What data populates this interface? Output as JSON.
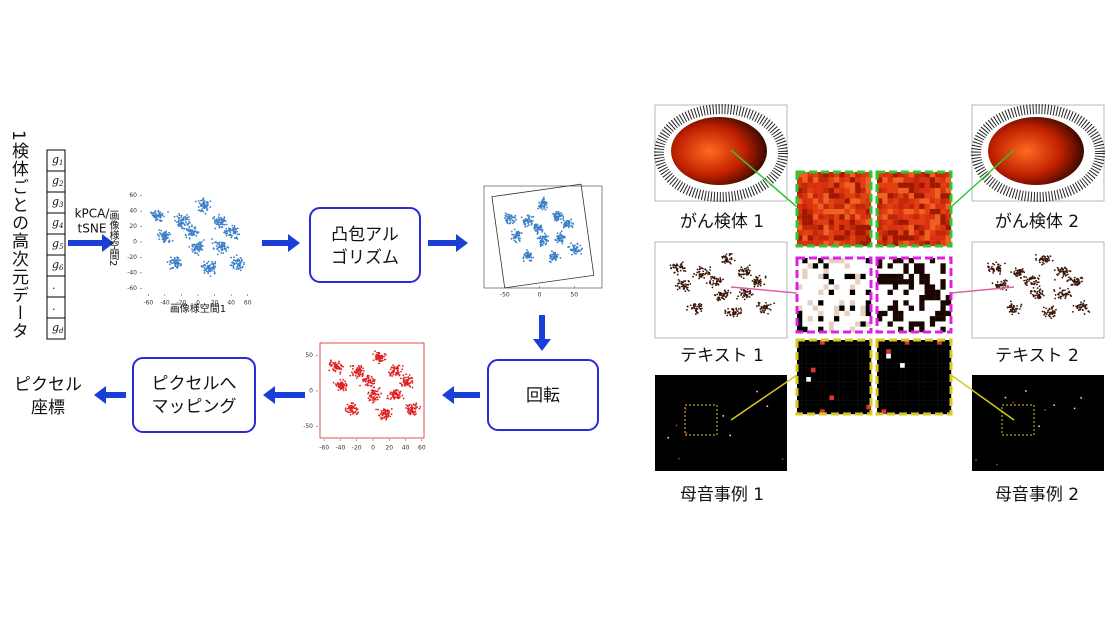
{
  "vertical_label": "1検体ごとの高次元データ",
  "vector": [
    {
      "var": "g",
      "sub": "1"
    },
    {
      "var": "g",
      "sub": "2"
    },
    {
      "var": "g",
      "sub": "3"
    },
    {
      "var": "g",
      "sub": "4"
    },
    {
      "var": "g",
      "sub": "5"
    },
    {
      "var": "g",
      "sub": "6"
    },
    {
      "var": "."
    },
    {
      "var": "."
    },
    {
      "var": "g",
      "sub": "d"
    }
  ],
  "method": [
    "kPCA/",
    "tSNE"
  ],
  "plot1": {
    "xlabel": "画像様空間1",
    "ylabel": "画像様空間2",
    "xlim": [
      -70,
      70
    ],
    "ylim": [
      -70,
      70
    ],
    "xticks": [
      -60,
      -40,
      -20,
      0,
      20,
      40,
      60
    ],
    "yticks": [
      -60,
      -40,
      -20,
      0,
      20,
      40,
      60
    ]
  },
  "plot2": {
    "xlim": [
      -80,
      90
    ],
    "xticks": [
      -50,
      0,
      50
    ]
  },
  "plot3": {
    "xlim": [
      -70,
      70
    ],
    "ylim": [
      -70,
      70
    ],
    "xticks": [
      -60,
      -40,
      -20,
      0,
      20,
      40,
      60
    ],
    "yticks": [
      -50,
      0,
      50
    ]
  },
  "steps": {
    "hull": [
      "凸包アル",
      "ゴリズム"
    ],
    "rotate": "回転",
    "mapping": [
      "ピクセルへ",
      "マッピング"
    ],
    "output": [
      "ピクセル",
      "座標"
    ]
  },
  "examples": {
    "cancer": [
      "がん検体 1",
      "がん検体 2"
    ],
    "text": [
      "テキスト 1",
      "テキスト 2"
    ],
    "vowel": [
      "母音事例 1",
      "母音事例 2"
    ]
  }
}
